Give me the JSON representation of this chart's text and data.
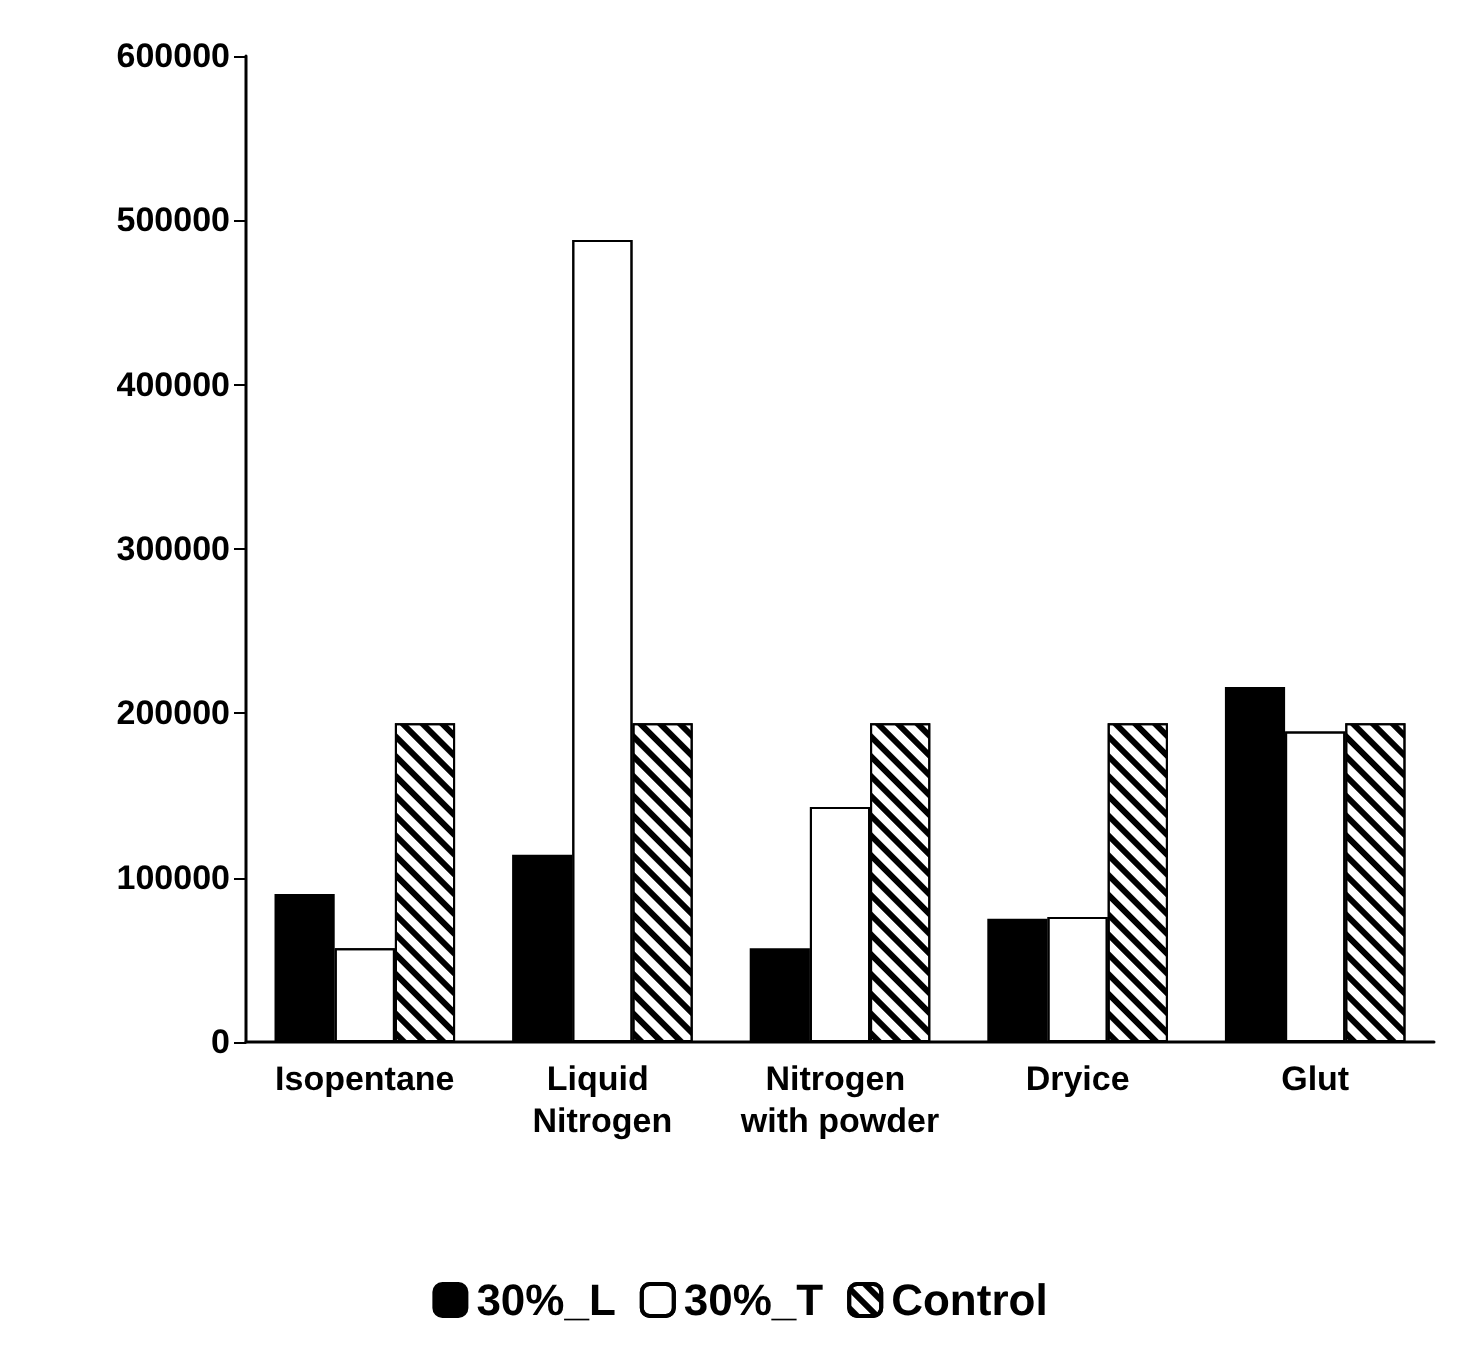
{
  "chart_data": {
    "type": "bar",
    "categories": [
      "Isopentane",
      "Liquid Nitrogen",
      "Nitrogen with powder",
      "Dryice",
      "Glut"
    ],
    "series": [
      {
        "name": "30%_L",
        "color": "#000000",
        "values": [
          90000,
          114000,
          57000,
          75000,
          216000
        ]
      },
      {
        "name": "30%_T",
        "color": "#ffffff",
        "values": [
          57000,
          488000,
          143000,
          76000,
          189000
        ]
      },
      {
        "name": "Control",
        "color": "#ffffff",
        "values": [
          194000,
          194000,
          194000,
          194000,
          194000
        ]
      }
    ],
    "ylim": [
      0,
      600000
    ],
    "yticks": [
      0,
      100000,
      200000,
      300000,
      400000,
      500000,
      600000
    ],
    "grid": false,
    "legend": "bottom"
  }
}
